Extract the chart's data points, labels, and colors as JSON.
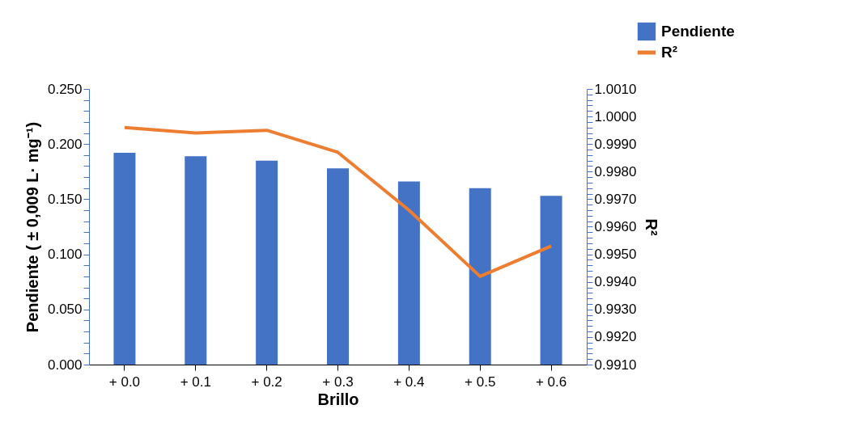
{
  "chart_data": {
    "type": "bar",
    "xlabel": "Brillo",
    "ylabel": "Pendiente ( ± 0,009 L· mg⁻¹)",
    "y2label": "R²",
    "categories": [
      "+ 0.0",
      "+ 0.1",
      "+ 0.2",
      "+ 0.3",
      "+ 0.4",
      "+ 0.5",
      "+ 0.6"
    ],
    "series": [
      {
        "name": "Pendiente",
        "color": "#4472c4",
        "values": [
          0.192,
          0.189,
          0.185,
          0.178,
          0.166,
          0.16,
          0.153
        ]
      },
      {
        "name": "R²",
        "type": "line",
        "line_style": "solid",
        "axis": "y2",
        "color": "#ed7d31",
        "values": [
          0.9996,
          0.9994,
          0.9995,
          0.9987,
          0.9966,
          0.9942,
          0.9953
        ]
      }
    ],
    "ylim": [
      0,
      0.25
    ],
    "yticks": [
      {
        "value": 0,
        "label": "0.000"
      },
      {
        "value": 0.01,
        "label": null
      },
      {
        "value": 0.02,
        "label": null
      },
      {
        "value": 0.03,
        "label": null
      },
      {
        "value": 0.04,
        "label": null
      },
      {
        "value": 0.05,
        "label": "0.050"
      },
      {
        "value": 0.06,
        "label": null
      },
      {
        "value": 0.07,
        "label": null
      },
      {
        "value": 0.08,
        "label": null
      },
      {
        "value": 0.09,
        "label": null
      },
      {
        "value": 0.1,
        "label": "0.100"
      },
      {
        "value": 0.11,
        "label": null
      },
      {
        "value": 0.12,
        "label": null
      },
      {
        "value": 0.13,
        "label": null
      },
      {
        "value": 0.14,
        "label": null
      },
      {
        "value": 0.15,
        "label": "0.150"
      },
      {
        "value": 0.16,
        "label": null
      },
      {
        "value": 0.17,
        "label": null
      },
      {
        "value": 0.18,
        "label": null
      },
      {
        "value": 0.19,
        "label": null
      },
      {
        "value": 0.2,
        "label": "0.200"
      },
      {
        "value": 0.21,
        "label": null
      },
      {
        "value": 0.22,
        "label": null
      },
      {
        "value": 0.23,
        "label": null
      },
      {
        "value": 0.24,
        "label": null
      },
      {
        "value": 0.25,
        "label": "0.250"
      }
    ],
    "y2lim": [
      0.991,
      1.001
    ],
    "y2ticks": [
      {
        "value": 0.991,
        "label": "0.9910"
      },
      {
        "value": 0.9912,
        "label": null
      },
      {
        "value": 0.9914,
        "label": null
      },
      {
        "value": 0.9916,
        "label": null
      },
      {
        "value": 0.9918,
        "label": null
      },
      {
        "value": 0.992,
        "label": "0.9920"
      },
      {
        "value": 0.9922,
        "label": null
      },
      {
        "value": 0.9924,
        "label": null
      },
      {
        "value": 0.9926,
        "label": null
      },
      {
        "value": 0.9928,
        "label": null
      },
      {
        "value": 0.993,
        "label": "0.9930"
      },
      {
        "value": 0.9932,
        "label": null
      },
      {
        "value": 0.9934,
        "label": null
      },
      {
        "value": 0.9936,
        "label": null
      },
      {
        "value": 0.9938,
        "label": null
      },
      {
        "value": 0.994,
        "label": "0.9940"
      },
      {
        "value": 0.9942,
        "label": null
      },
      {
        "value": 0.9944,
        "label": null
      },
      {
        "value": 0.9946,
        "label": null
      },
      {
        "value": 0.9948,
        "label": null
      },
      {
        "value": 0.995,
        "label": "0.9950"
      },
      {
        "value": 0.9952,
        "label": null
      },
      {
        "value": 0.9954,
        "label": null
      },
      {
        "value": 0.9956,
        "label": null
      },
      {
        "value": 0.9958,
        "label": null
      },
      {
        "value": 0.996,
        "label": "0.9960"
      },
      {
        "value": 0.9962,
        "label": null
      },
      {
        "value": 0.9964,
        "label": null
      },
      {
        "value": 0.9966,
        "label": null
      },
      {
        "value": 0.9968,
        "label": null
      },
      {
        "value": 0.997,
        "label": "0.9970"
      },
      {
        "value": 0.9972,
        "label": null
      },
      {
        "value": 0.9974,
        "label": null
      },
      {
        "value": 0.9976,
        "label": null
      },
      {
        "value": 0.9978,
        "label": null
      },
      {
        "value": 0.998,
        "label": "0.9980"
      },
      {
        "value": 0.9982,
        "label": null
      },
      {
        "value": 0.9984,
        "label": null
      },
      {
        "value": 0.9986,
        "label": null
      },
      {
        "value": 0.9988,
        "label": null
      },
      {
        "value": 0.999,
        "label": "0.9990"
      },
      {
        "value": 0.9992,
        "label": null
      },
      {
        "value": 0.9994,
        "label": null
      },
      {
        "value": 0.9996,
        "label": null
      },
      {
        "value": 0.9998,
        "label": null
      },
      {
        "value": 1.0,
        "label": "1.0000"
      },
      {
        "value": 1.0002,
        "label": null
      },
      {
        "value": 1.0004,
        "label": null
      },
      {
        "value": 1.0006,
        "label": null
      },
      {
        "value": 1.0008,
        "label": null
      },
      {
        "value": 1.001,
        "label": "1.0010"
      }
    ],
    "grid": false,
    "legend": "top right"
  }
}
